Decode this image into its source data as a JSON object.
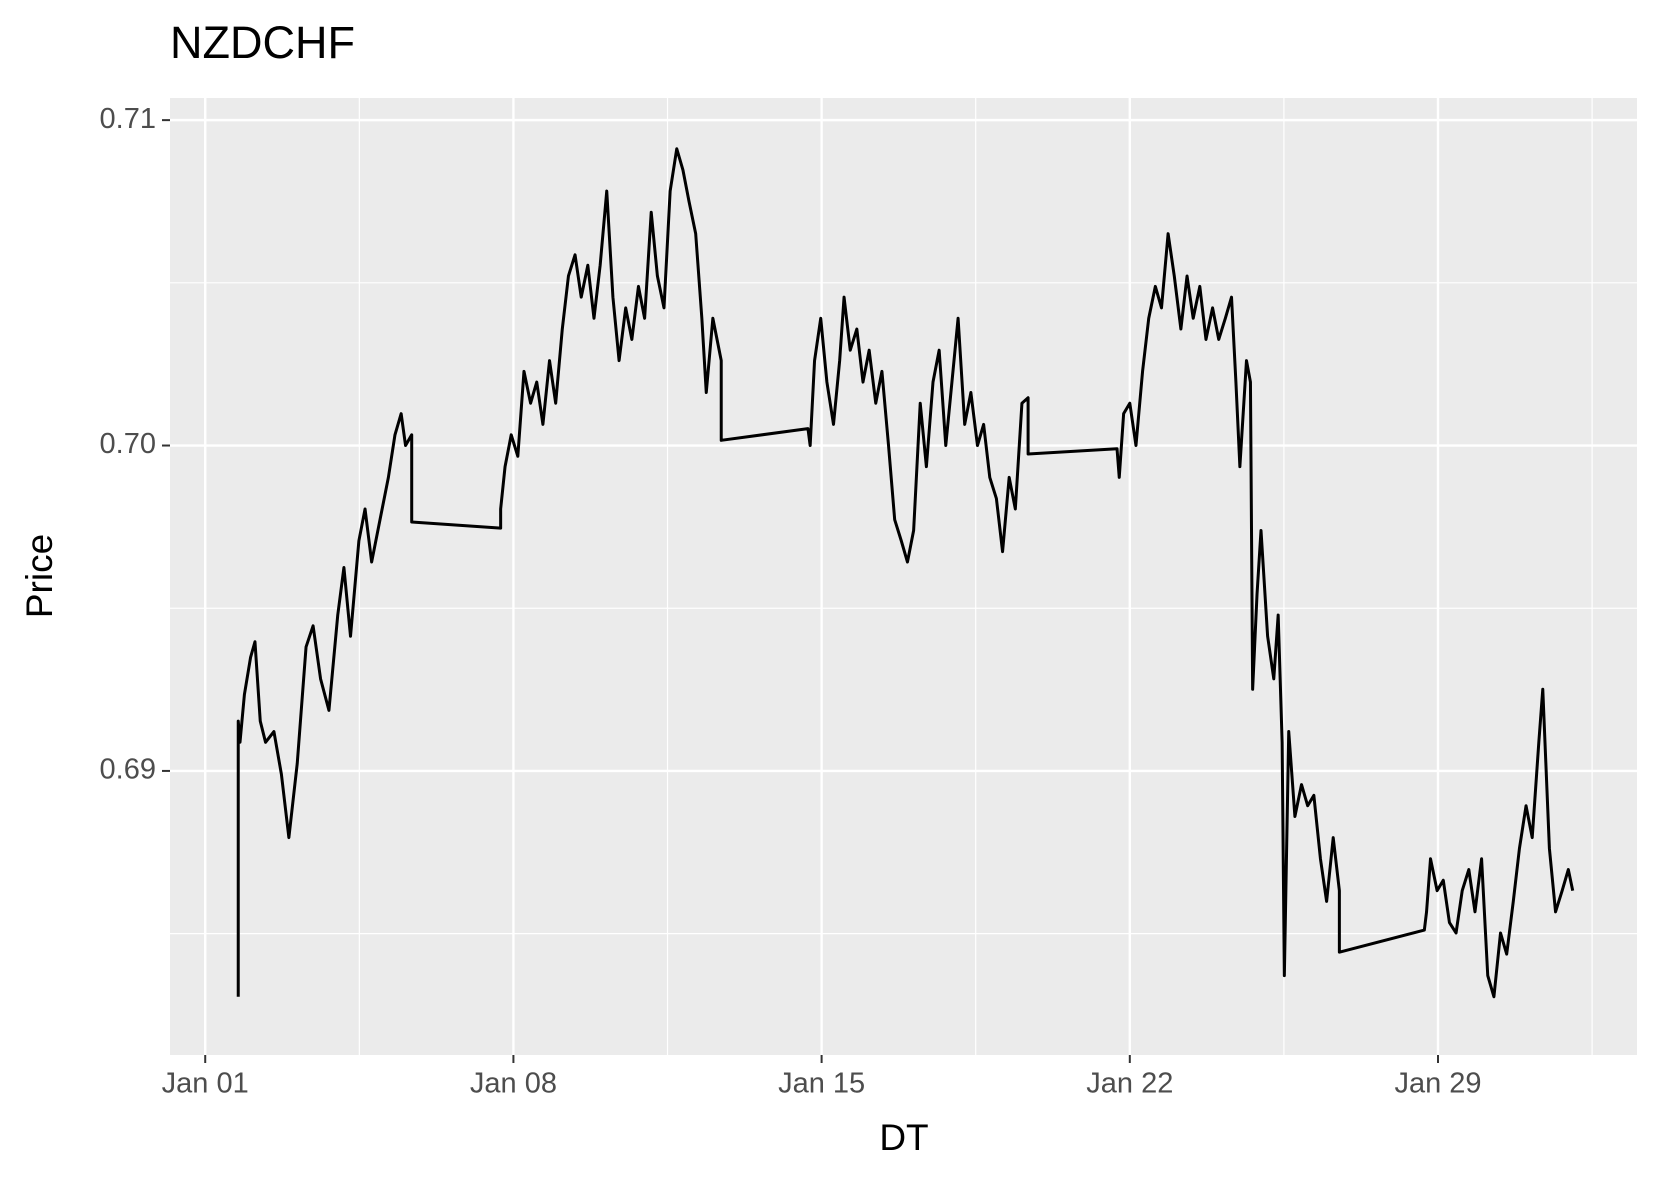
{
  "chart_data": {
    "type": "line",
    "title": "NZDCHF",
    "x_label": "DT",
    "y_label": "Price",
    "color": "#000000",
    "panel_color": "#ebebeb",
    "grid": true,
    "x": [
      1.75,
      1.75,
      1.79,
      1.89,
      2.03,
      2.13,
      2.25,
      2.37,
      2.56,
      2.73,
      2.9,
      3.09,
      3.29,
      3.45,
      3.62,
      3.81,
      4.01,
      4.15,
      4.3,
      4.49,
      4.63,
      4.78,
      4.97,
      5.16,
      5.31,
      5.45,
      5.55,
      5.69,
      5.69,
      7.71,
      7.71,
      7.81,
      7.95,
      8.1,
      8.24,
      8.39,
      8.53,
      8.67,
      8.82,
      8.96,
      9.11,
      9.25,
      9.4,
      9.54,
      9.69,
      9.83,
      9.97,
      10.12,
      10.26,
      10.4,
      10.55,
      10.69,
      10.84,
      10.98,
      11.13,
      11.27,
      11.42,
      11.56,
      11.71,
      11.85,
      11.99,
      12.14,
      12.28,
      12.38,
      12.53,
      12.72,
      12.72,
      14.69,
      14.74,
      14.84,
      14.98,
      15.12,
      15.27,
      15.41,
      15.51,
      15.65,
      15.8,
      15.94,
      16.08,
      16.23,
      16.37,
      16.52,
      16.66,
      16.81,
      16.95,
      17.09,
      17.24,
      17.38,
      17.53,
      17.67,
      17.82,
      17.96,
      18.1,
      18.25,
      18.39,
      18.54,
      18.68,
      18.82,
      18.97,
      19.11,
      19.26,
      19.4,
      19.55,
      19.69,
      19.69,
      21.71,
      21.76,
      21.86,
      22.0,
      22.14,
      22.29,
      22.43,
      22.58,
      22.72,
      22.87,
      23.01,
      23.16,
      23.3,
      23.44,
      23.59,
      23.73,
      23.88,
      24.02,
      24.17,
      24.31,
      24.41,
      24.5,
      24.65,
      24.74,
      24.79,
      24.89,
      24.98,
      25.13,
      25.27,
      25.37,
      25.46,
      25.51,
      25.61,
      25.75,
      25.9,
      26.04,
      26.18,
      26.33,
      26.47,
      26.62,
      26.76,
      26.76,
      28.69,
      28.74,
      28.83,
      28.98,
      29.12,
      29.26,
      29.41,
      29.55,
      29.7,
      29.84,
      29.99,
      30.13,
      30.27,
      30.42,
      30.56,
      30.71,
      30.85,
      31.0,
      31.14,
      31.29,
      31.38,
      31.53,
      31.67,
      31.82,
      31.96,
      32.06
    ],
    "values": [
      0.68306,
      0.69153,
      0.69088,
      0.69235,
      0.69349,
      0.69397,
      0.69153,
      0.69088,
      0.69121,
      0.6899,
      0.68795,
      0.69023,
      0.69381,
      0.69446,
      0.69283,
      0.69186,
      0.69479,
      0.69625,
      0.69414,
      0.69707,
      0.69805,
      0.69642,
      0.69772,
      0.69902,
      0.70033,
      0.70098,
      0.7,
      0.70033,
      0.69765,
      0.69746,
      0.69805,
      0.69935,
      0.70033,
      0.69967,
      0.70228,
      0.7013,
      0.70195,
      0.70065,
      0.70261,
      0.7013,
      0.70358,
      0.70521,
      0.70586,
      0.70456,
      0.70554,
      0.70391,
      0.70554,
      0.70782,
      0.70456,
      0.70261,
      0.70423,
      0.70326,
      0.70489,
      0.70391,
      0.70717,
      0.70521,
      0.70423,
      0.70782,
      0.70912,
      0.70847,
      0.70749,
      0.70651,
      0.70391,
      0.70163,
      0.70391,
      0.70261,
      0.70016,
      0.70052,
      0.7,
      0.70261,
      0.70391,
      0.70195,
      0.70065,
      0.70261,
      0.70456,
      0.70293,
      0.70358,
      0.70195,
      0.70293,
      0.7013,
      0.70228,
      0.7,
      0.69772,
      0.69707,
      0.69642,
      0.69739,
      0.7013,
      0.69935,
      0.70195,
      0.70293,
      0.7,
      0.70195,
      0.70391,
      0.70065,
      0.70163,
      0.7,
      0.70065,
      0.69902,
      0.69837,
      0.69674,
      0.69902,
      0.69805,
      0.7013,
      0.70147,
      0.69974,
      0.6999,
      0.69902,
      0.70098,
      0.7013,
      0.7,
      0.70228,
      0.70391,
      0.70489,
      0.70423,
      0.70651,
      0.70521,
      0.70358,
      0.70521,
      0.70391,
      0.70489,
      0.70326,
      0.70423,
      0.70326,
      0.70391,
      0.70456,
      0.70195,
      0.69935,
      0.70261,
      0.70195,
      0.69251,
      0.69544,
      0.69739,
      0.69414,
      0.69283,
      0.69479,
      0.69088,
      0.68371,
      0.69121,
      0.6886,
      0.68958,
      0.68893,
      0.68925,
      0.6873,
      0.68599,
      0.68795,
      0.68632,
      0.68443,
      0.68511,
      0.68567,
      0.6873,
      0.68632,
      0.68664,
      0.68534,
      0.68502,
      0.68632,
      0.68697,
      0.68567,
      0.6873,
      0.68371,
      0.68306,
      0.68502,
      0.68437,
      0.68599,
      0.68762,
      0.68893,
      0.68795,
      0.69088,
      0.69251,
      0.68762,
      0.68567,
      0.68632,
      0.68697,
      0.68632
    ],
    "xlim": [
      0.2,
      33.52
    ],
    "ylim": [
      0.68127,
      0.71068
    ],
    "xticks": [
      {
        "value": 1,
        "label": "Jan 01"
      },
      {
        "value": 8,
        "label": "Jan 08"
      },
      {
        "value": 15,
        "label": "Jan 15"
      },
      {
        "value": 22,
        "label": "Jan 22"
      },
      {
        "value": 29,
        "label": "Jan 29"
      }
    ],
    "yticks": [
      0.69,
      {
        "value": 0.7,
        "label": "0.70"
      },
      0.71
    ]
  }
}
